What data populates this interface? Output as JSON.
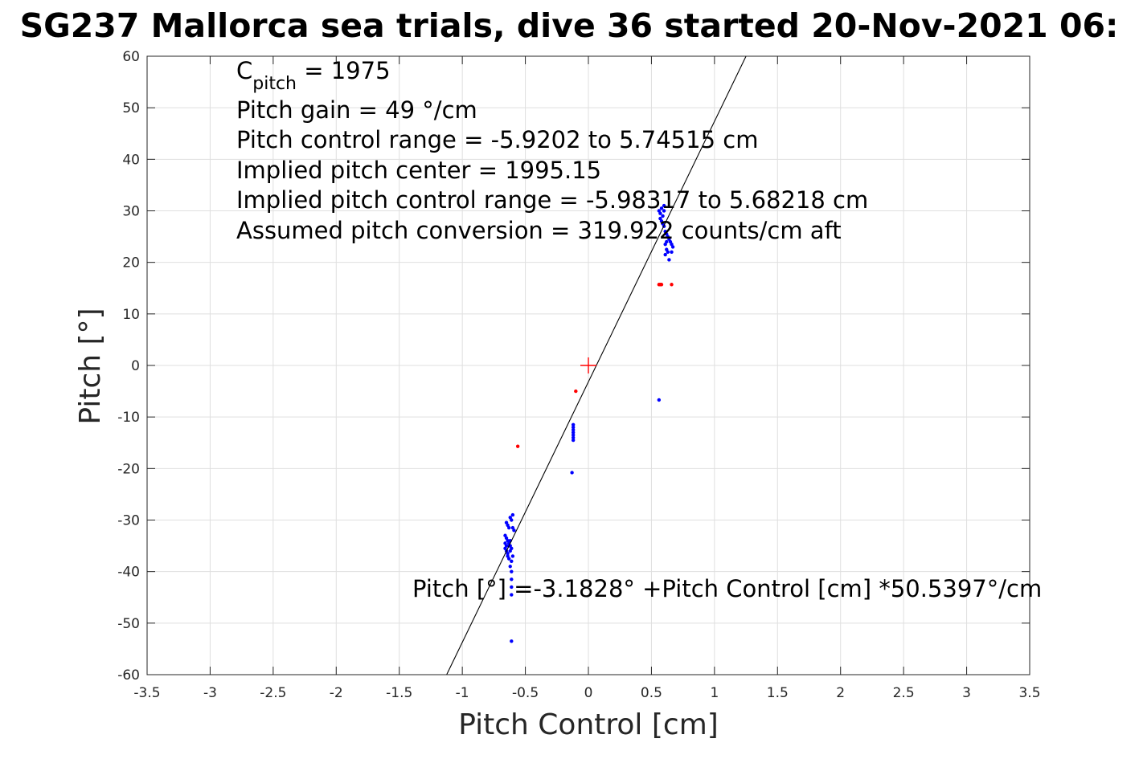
{
  "chart_data": {
    "type": "scatter",
    "title": "SG237 Mallorca sea trials, dive 36 started 20-Nov-2021 06:",
    "xlabel": "Pitch Control [cm]",
    "ylabel": "Pitch [°]",
    "xlim": [
      -3.5,
      3.5
    ],
    "ylim": [
      -60,
      60
    ],
    "xticks": [
      -3.5,
      -3,
      -2.5,
      -2,
      -1.5,
      -1,
      -0.5,
      0,
      0.5,
      1,
      1.5,
      2,
      2.5,
      3,
      3.5
    ],
    "yticks": [
      -60,
      -50,
      -40,
      -30,
      -20,
      -10,
      0,
      10,
      20,
      30,
      40,
      50,
      60
    ],
    "grid": true,
    "colors": {
      "included": "#0000ff",
      "excluded": "#ff0000",
      "fit": "#000000",
      "center": "#ff0000"
    },
    "series": [
      {
        "points": [
          [
            -0.65,
            -30.5
          ],
          [
            -0.64,
            -31.0
          ],
          [
            -0.63,
            -31.5
          ],
          [
            -0.62,
            -29.5
          ],
          [
            -0.61,
            -30.0
          ],
          [
            -0.6,
            -31.5
          ],
          [
            -0.59,
            -32.0
          ],
          [
            -0.6,
            -29.0
          ],
          [
            -0.66,
            -33.0
          ],
          [
            -0.65,
            -33.5
          ],
          [
            -0.64,
            -34.0
          ],
          [
            -0.63,
            -34.5
          ],
          [
            -0.62,
            -35.0
          ],
          [
            -0.66,
            -35.5
          ],
          [
            -0.65,
            -36.0
          ],
          [
            -0.64,
            -36.5
          ],
          [
            -0.63,
            -35.0
          ],
          [
            -0.62,
            -34.0
          ],
          [
            -0.61,
            -35.5
          ],
          [
            -0.66,
            -34.5
          ],
          [
            -0.65,
            -35.0
          ],
          [
            -0.64,
            -37.0
          ],
          [
            -0.63,
            -37.5
          ],
          [
            -0.62,
            -36.0
          ],
          [
            -0.61,
            -38.0
          ],
          [
            -0.6,
            -37.0
          ],
          [
            -0.62,
            -39.0
          ],
          [
            -0.61,
            -40.0
          ],
          [
            -0.61,
            -41.5
          ],
          [
            -0.61,
            -43.0
          ],
          [
            -0.61,
            -44.5
          ],
          [
            -0.61,
            -53.5
          ],
          [
            -0.12,
            -11.5
          ],
          [
            -0.12,
            -12.0
          ],
          [
            -0.12,
            -12.5
          ],
          [
            -0.12,
            -13.0
          ],
          [
            -0.12,
            -13.5
          ],
          [
            -0.12,
            -14.0
          ],
          [
            -0.12,
            -14.5
          ],
          [
            -0.13,
            -20.8
          ],
          [
            0.56,
            30.0
          ],
          [
            0.57,
            29.5
          ],
          [
            0.58,
            30.5
          ],
          [
            0.59,
            29.0
          ],
          [
            0.6,
            30.0
          ],
          [
            0.57,
            28.5
          ],
          [
            0.58,
            28.0
          ],
          [
            0.59,
            27.5
          ],
          [
            0.6,
            27.0
          ],
          [
            0.61,
            26.0
          ],
          [
            0.62,
            25.5
          ],
          [
            0.63,
            25.0
          ],
          [
            0.64,
            24.5
          ],
          [
            0.65,
            24.0
          ],
          [
            0.66,
            23.5
          ],
          [
            0.67,
            23.0
          ],
          [
            0.61,
            23.5
          ],
          [
            0.62,
            22.5
          ],
          [
            0.63,
            22.0
          ],
          [
            0.61,
            21.5
          ],
          [
            0.64,
            20.5
          ],
          [
            0.62,
            24.0
          ],
          [
            0.6,
            31.0
          ],
          [
            0.66,
            22.0
          ],
          [
            0.56,
            -6.7
          ]
        ]
      },
      {
        "points": [
          [
            -0.56,
            -15.7
          ],
          [
            -0.1,
            -5.0
          ],
          [
            0.56,
            15.7
          ],
          [
            0.57,
            15.7
          ],
          [
            0.58,
            15.7
          ],
          [
            0.66,
            15.7
          ]
        ]
      }
    ],
    "fit_line": {
      "intercept": -3.1828,
      "slope": 50.5397
    },
    "center_marker": [
      0,
      0
    ]
  },
  "annotations": {
    "c_pitch_symbol": "C",
    "c_pitch_sub": "pitch",
    "c_pitch_rest": " = 1975",
    "pitch_gain": "Pitch gain = 49 °/cm",
    "control_range": "Pitch control range = -5.9202 to 5.74515 cm",
    "implied_center": "Implied pitch center = 1995.15",
    "implied_range": "Implied pitch control range = -5.98317 to 5.68218 cm",
    "conversion": "Assumed pitch conversion = 319.922 counts/cm aft",
    "fit_equation": "Pitch [°] =-3.1828° +Pitch Control [cm] *50.5397°/cm"
  }
}
